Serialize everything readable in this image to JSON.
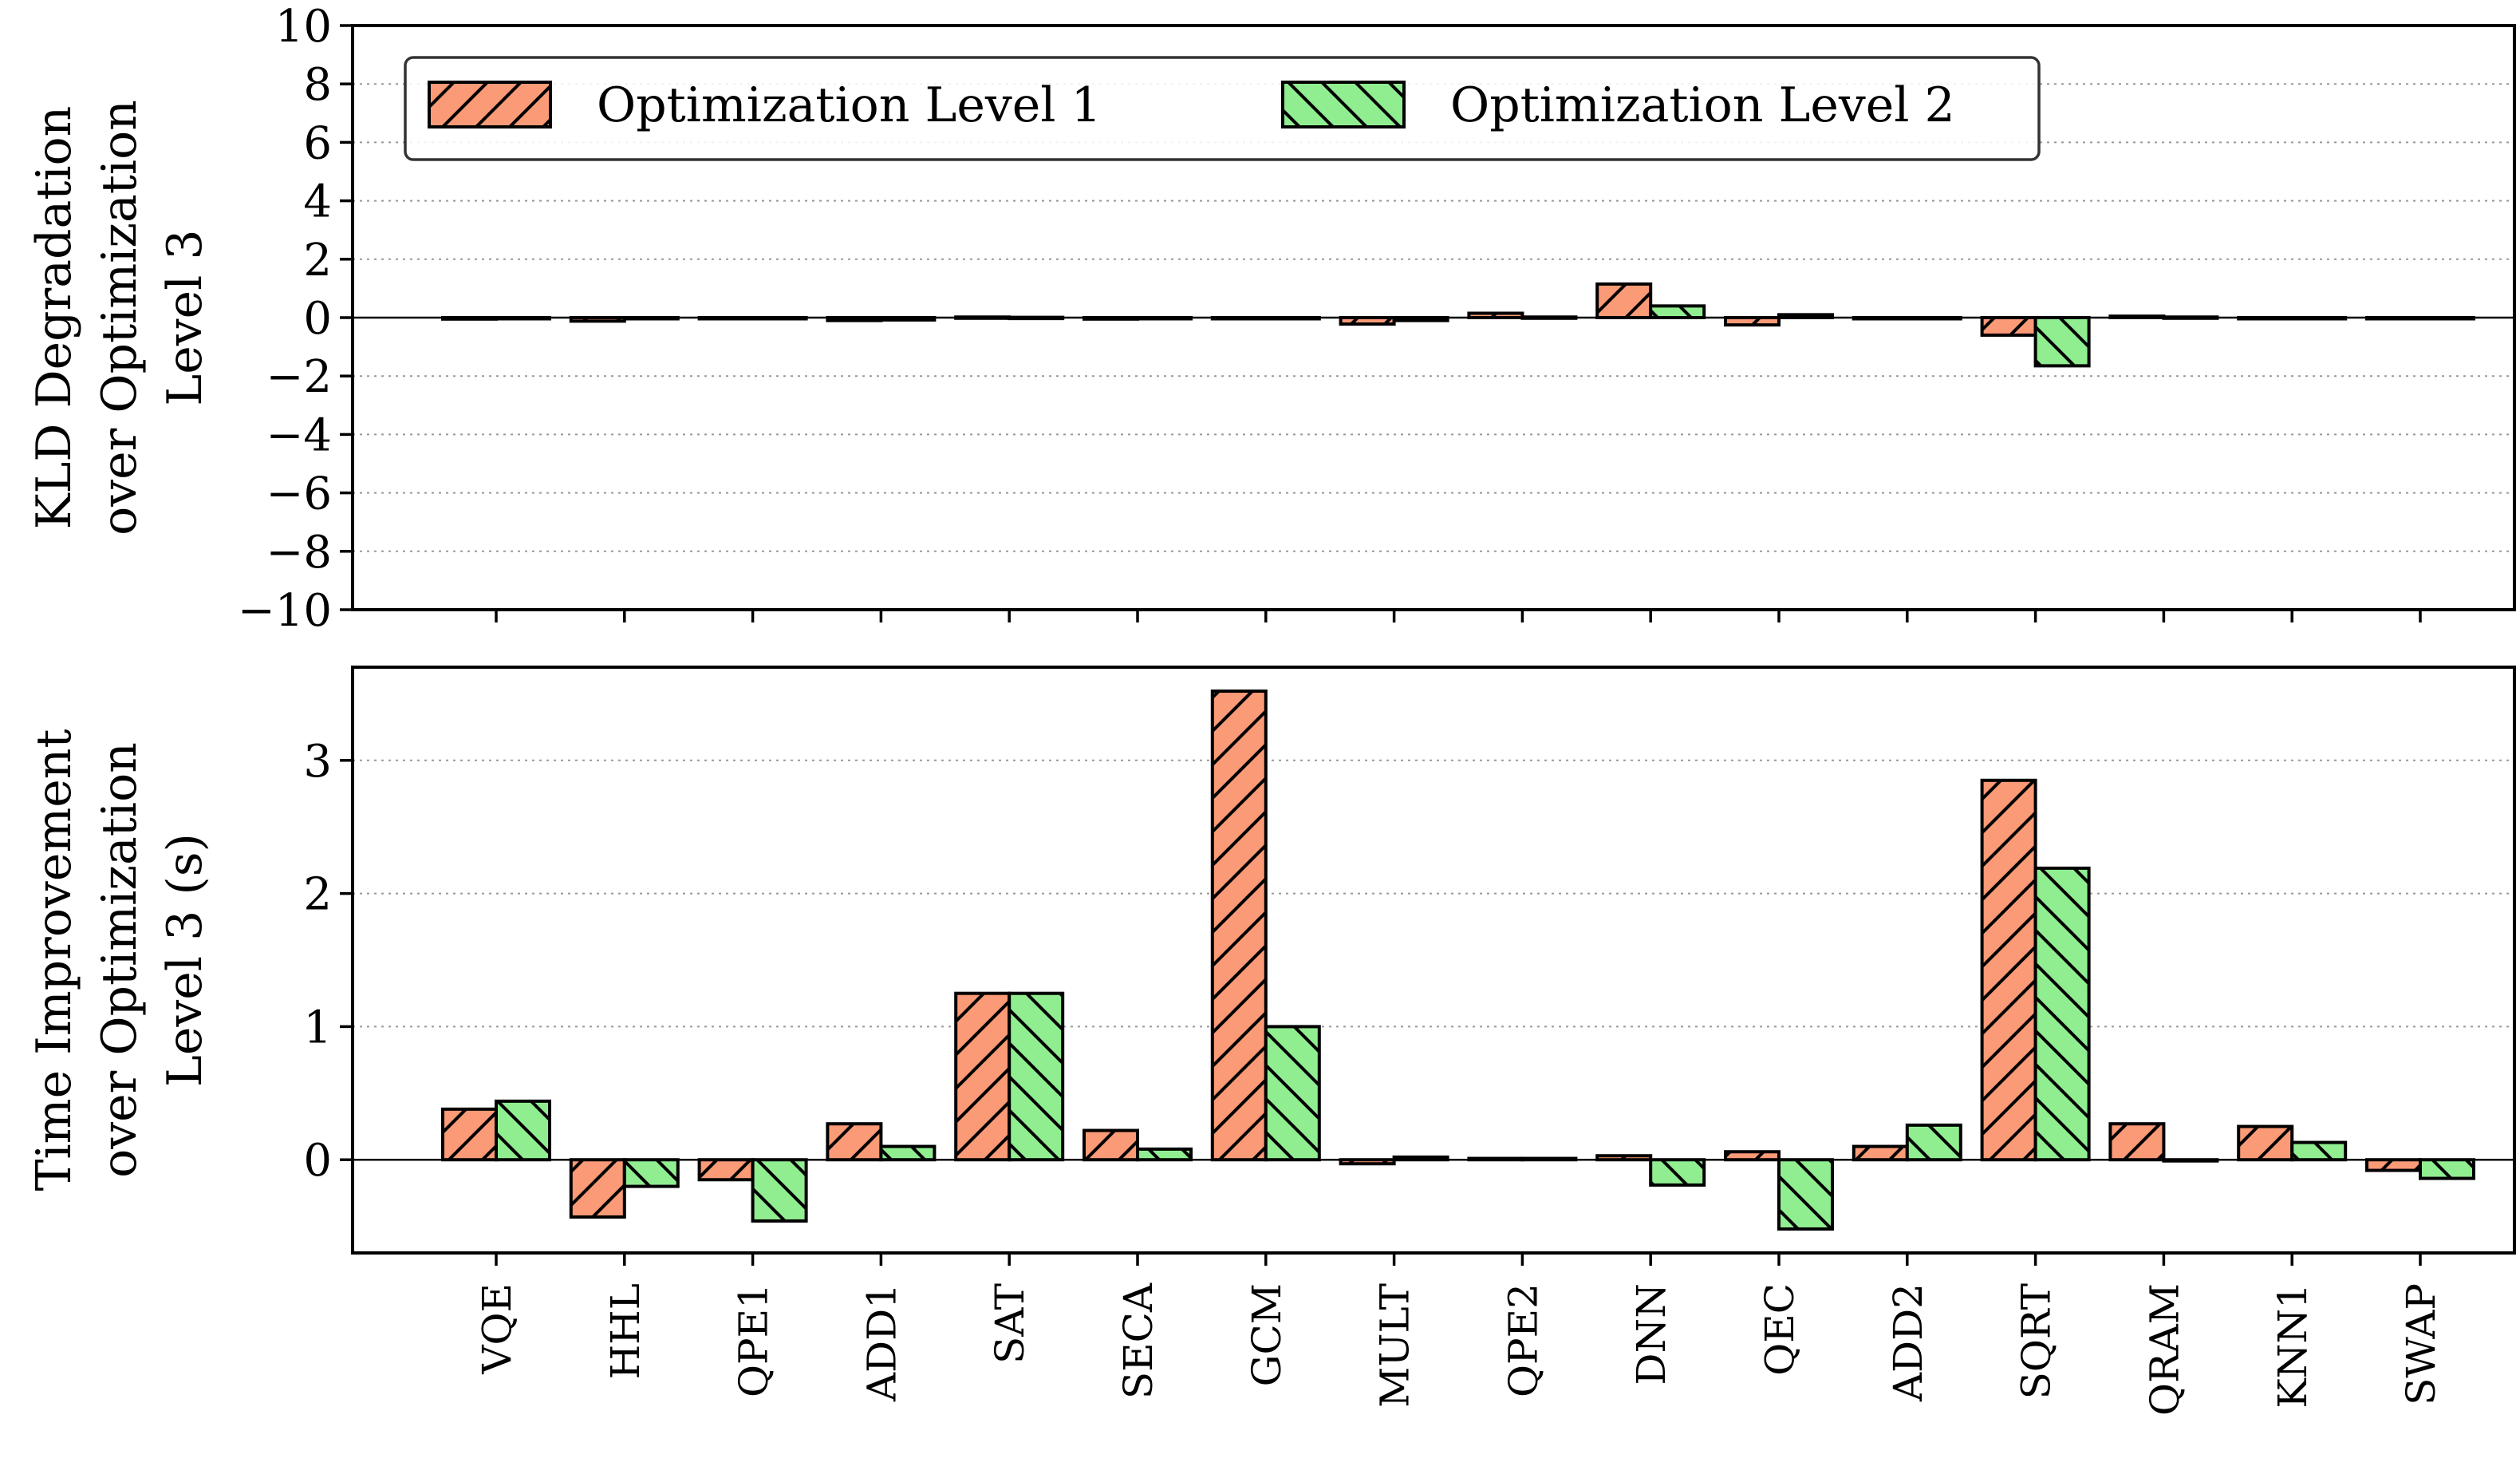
{
  "chart_data": [
    {
      "type": "bar",
      "categories": [
        "VQE",
        "HHL",
        "QPE1",
        "ADD1",
        "SAT",
        "SECA",
        "GCM",
        "MULT",
        "QPE2",
        "DNN",
        "QEC",
        "ADD2",
        "SQRT",
        "QRAM",
        "KNN1",
        "SWAP"
      ],
      "ylabel_lines": [
        "KLD Degradation",
        "over Optimization",
        "Level 3"
      ],
      "ylim": [
        -10,
        10
      ],
      "yticks": [
        10,
        8,
        6,
        4,
        2,
        0,
        -2,
        -4,
        -6,
        -8,
        -10
      ],
      "ytick_labels": [
        "10",
        "8",
        "6",
        "4",
        "2",
        "0",
        "−2",
        "−4",
        "−6",
        "−8",
        "−10"
      ],
      "grid": "horizontal-dotted",
      "legend_position": "upper-left",
      "series": [
        {
          "name": "Optimization Level 1",
          "color": "#fa9a77",
          "hatch": "forward",
          "values": [
            -0.05,
            -0.12,
            -0.02,
            -0.1,
            0.02,
            -0.05,
            -0.02,
            -0.22,
            0.15,
            1.15,
            -0.25,
            -0.02,
            -0.6,
            0.05,
            -0.02,
            -0.02
          ]
        },
        {
          "name": "Optimization Level 2",
          "color": "#90ee90",
          "hatch": "backward",
          "values": [
            -0.03,
            -0.02,
            -0.01,
            -0.08,
            0.01,
            -0.02,
            -0.02,
            -0.1,
            0.02,
            0.4,
            0.1,
            -0.02,
            -1.65,
            0.02,
            -0.02,
            -0.01
          ]
        }
      ]
    },
    {
      "type": "bar",
      "categories": [
        "VQE",
        "HHL",
        "QPE1",
        "ADD1",
        "SAT",
        "SECA",
        "GCM",
        "MULT",
        "QPE2",
        "DNN",
        "QEC",
        "ADD2",
        "SQRT",
        "QRAM",
        "KNN1",
        "SWAP"
      ],
      "ylabel_lines": [
        "Time Improvement",
        "over Optimization",
        "Level 3 (s)"
      ],
      "ylim": [
        -0.7,
        3.7
      ],
      "yticks": [
        0,
        1,
        2,
        3
      ],
      "ytick_labels": [
        "0",
        "1",
        "2",
        "3"
      ],
      "grid": "horizontal-dotted",
      "series": [
        {
          "name": "Optimization Level 1",
          "color": "#fa9a77",
          "hatch": "forward",
          "values": [
            0.38,
            -0.43,
            -0.15,
            0.27,
            1.25,
            0.22,
            3.52,
            -0.03,
            0.01,
            0.03,
            0.06,
            0.1,
            2.85,
            0.27,
            0.25,
            -0.08
          ]
        },
        {
          "name": "Optimization Level 2",
          "color": "#90ee90",
          "hatch": "backward",
          "values": [
            0.44,
            -0.2,
            -0.46,
            0.1,
            1.25,
            0.08,
            1.0,
            0.02,
            0.01,
            -0.19,
            -0.52,
            0.26,
            2.19,
            0.0,
            0.13,
            -0.14
          ]
        }
      ]
    }
  ]
}
